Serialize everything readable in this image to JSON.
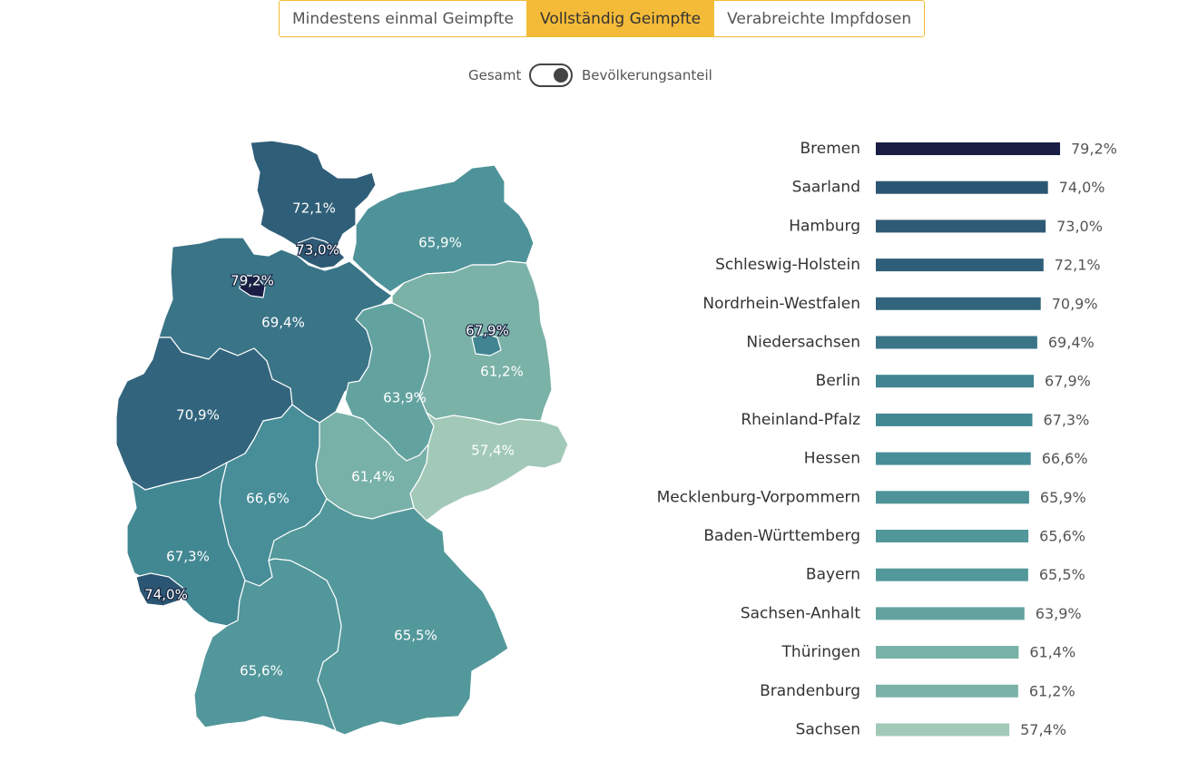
{
  "tabs": [
    {
      "label": "Mindestens einmal Geimpfte",
      "active": false
    },
    {
      "label": "Vollständig Geimpfte",
      "active": true
    },
    {
      "label": "Verabreichte Impfdosen",
      "active": false
    }
  ],
  "toggle": {
    "left_label": "Gesamt",
    "right_label": "Bevölkerungsanteil",
    "state": "right"
  },
  "colors": {
    "accent": "#f4bb38",
    "darkest": "#1a1e45",
    "lightest": "#a2c9b8",
    "state_fill": {
      "Bremen": "#1a1e45",
      "Saarland": "#2b5673",
      "Hamburg": "#2e5a75",
      "Schleswig-Holstein": "#2f5e78",
      "Nordrhein-Westfalen": "#32657d",
      "Niedersachsen": "#3a7487",
      "Berlin": "#418592",
      "Rheinland-Pfalz": "#428893",
      "Hessen": "#478e98",
      "Mecklenburg-Vorpommern": "#4e9399",
      "Baden-Württemberg": "#52979b",
      "Bayern": "#53989b",
      "Sachsen-Anhalt": "#62a3a0",
      "Thüringen": "#78b1a8",
      "Brandenburg": "#7bb2a8",
      "Sachsen": "#a2c9b8"
    }
  },
  "chart_data": {
    "type": "bar",
    "orientation": "horizontal",
    "unit": "%",
    "categories": [
      "Bremen",
      "Saarland",
      "Hamburg",
      "Schleswig-Holstein",
      "Nordrhein-Westfalen",
      "Niedersachsen",
      "Berlin",
      "Rheinland-Pfalz",
      "Hessen",
      "Mecklenburg-Vorpommern",
      "Baden-Württemberg",
      "Bayern",
      "Sachsen-Anhalt",
      "Thüringen",
      "Brandenburg",
      "Sachsen"
    ],
    "values": [
      79.2,
      74.0,
      73.0,
      72.1,
      70.9,
      69.4,
      67.9,
      67.3,
      66.6,
      65.9,
      65.6,
      65.5,
      63.9,
      61.4,
      61.2,
      57.4
    ],
    "value_labels": [
      "79,2%",
      "74,0%",
      "73,0%",
      "72,1%",
      "70,9%",
      "69,4%",
      "67,9%",
      "67,3%",
      "66,6%",
      "65,9%",
      "65,6%",
      "65,5%",
      "63,9%",
      "61,4%",
      "61,2%",
      "57,4%"
    ],
    "xlim": [
      0,
      79.2
    ],
    "grid": false,
    "legend": "none"
  },
  "map": {
    "type": "choropleth",
    "labels": [
      {
        "state": "Schleswig-Holstein",
        "text": "72,1%"
      },
      {
        "state": "Hamburg",
        "text": "73,0%"
      },
      {
        "state": "Mecklenburg-Vorpommern",
        "text": "65,9%"
      },
      {
        "state": "Bremen",
        "text": "79,2%"
      },
      {
        "state": "Niedersachsen",
        "text": "69,4%"
      },
      {
        "state": "Berlin",
        "text": "67,9%"
      },
      {
        "state": "Brandenburg",
        "text": "61,2%"
      },
      {
        "state": "Sachsen-Anhalt",
        "text": "63,9%"
      },
      {
        "state": "Nordrhein-Westfalen",
        "text": "70,9%"
      },
      {
        "state": "Sachsen",
        "text": "57,4%"
      },
      {
        "state": "Thüringen",
        "text": "61,4%"
      },
      {
        "state": "Hessen",
        "text": "66,6%"
      },
      {
        "state": "Rheinland-Pfalz",
        "text": "67,3%"
      },
      {
        "state": "Saarland",
        "text": "74,0%"
      },
      {
        "state": "Bayern",
        "text": "65,5%"
      },
      {
        "state": "Baden-Württemberg",
        "text": "65,6%"
      }
    ]
  }
}
